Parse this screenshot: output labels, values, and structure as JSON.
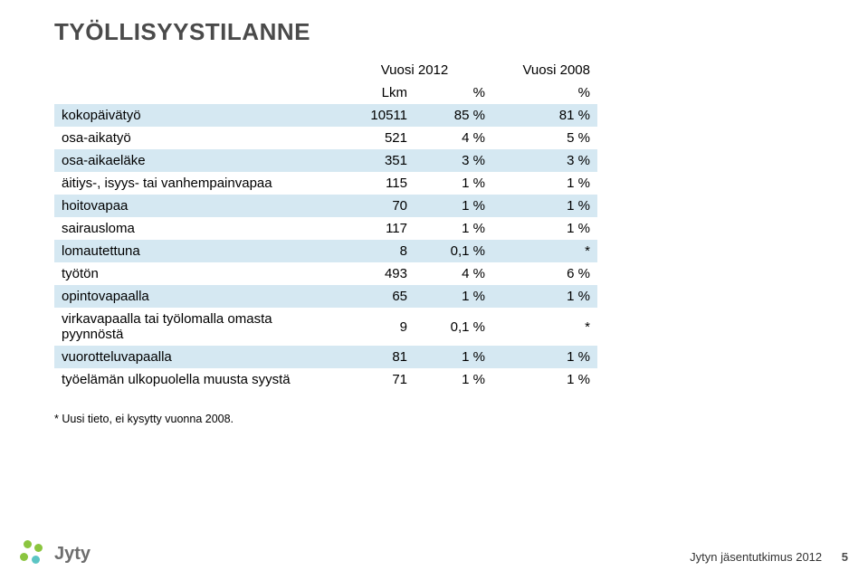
{
  "title": "TYÖLLISYYSTILANNE",
  "header": {
    "year_a": "Vuosi 2012",
    "year_b": "Vuosi 2008",
    "lkm": "Lkm",
    "pct": "%",
    "pct2": "%"
  },
  "rows": [
    {
      "label": "kokopäivätyö",
      "lkm": "10511",
      "pct": "85 %",
      "pct2": "81 %",
      "band": true
    },
    {
      "label": "osa-aikatyö",
      "lkm": "521",
      "pct": "4 %",
      "pct2": "5 %",
      "band": false
    },
    {
      "label": "osa-aikaeläke",
      "lkm": "351",
      "pct": "3 %",
      "pct2": "3 %",
      "band": true
    },
    {
      "label": "äitiys-, isyys- tai vanhempainvapaa",
      "lkm": "115",
      "pct": "1 %",
      "pct2": "1 %",
      "band": false
    },
    {
      "label": "hoitovapaa",
      "lkm": "70",
      "pct": "1 %",
      "pct2": "1 %",
      "band": true
    },
    {
      "label": "sairausloma",
      "lkm": "117",
      "pct": "1 %",
      "pct2": "1 %",
      "band": false
    },
    {
      "label": "lomautettuna",
      "lkm": "8",
      "pct": "0,1 %",
      "pct2": "*",
      "band": true
    },
    {
      "label": "työtön",
      "lkm": "493",
      "pct": "4 %",
      "pct2": "6 %",
      "band": false
    },
    {
      "label": "opintovapaalla",
      "lkm": "65",
      "pct": "1 %",
      "pct2": "1 %",
      "band": true
    },
    {
      "label": "virkavapaalla tai työlomalla omasta pyynnöstä",
      "lkm": "9",
      "pct": "0,1 %",
      "pct2": "*",
      "band": false
    },
    {
      "label": "vuorotteluvapaalla",
      "lkm": "81",
      "pct": "1 %",
      "pct2": "1 %",
      "band": true
    },
    {
      "label": "työelämän ulkopuolella muusta syystä",
      "lkm": "71",
      "pct": "1 %",
      "pct2": "1 %",
      "band": false
    }
  ],
  "footnote": "* Uusi tieto, ei kysytty vuonna 2008.",
  "footer": {
    "brand": "Jyty",
    "caption": "Jytyn jäsentutkimus 2012",
    "page": "5"
  },
  "colors": {
    "band": "#d5e8f2",
    "title": "#4a4a4a",
    "brand_grey": "#6d6d6d",
    "dot_green": "#8bc53f",
    "dot_teal": "#5bc5c4"
  },
  "typography": {
    "title_fontsize": 26,
    "body_fontsize": 15,
    "footnote_fontsize": 12.5,
    "footer_fontsize": 13,
    "brand_fontsize": 20
  }
}
